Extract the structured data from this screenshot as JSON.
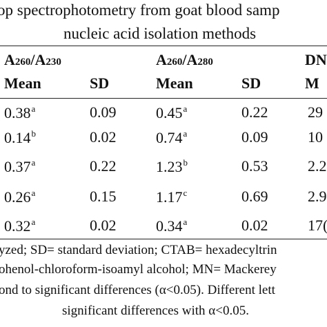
{
  "caption": {
    "line1": "op spectrophotometry from goat blood samp",
    "line2": "nucleic acid isolation methods"
  },
  "headers": {
    "group1": {
      "main": "A",
      "sub1": "260",
      "slash": "/A",
      "sub2": "230"
    },
    "group2": {
      "main": "A",
      "sub1": "260",
      "slash": "/A",
      "sub2": "280"
    },
    "group3": "DN",
    "mean": "Mean",
    "sd": "SD",
    "mean_partial": "M"
  },
  "rows": [
    {
      "m1": "0.38",
      "s1": "a",
      "sd1": "0.09",
      "m2": "0.45",
      "s2": "a",
      "sd2": "0.22",
      "c3": "29"
    },
    {
      "m1": "0.14",
      "s1": "b",
      "sd1": "0.02",
      "m2": "0.74",
      "s2": "a",
      "sd2": "0.09",
      "c3": "10"
    },
    {
      "m1": "0.37",
      "s1": "a",
      "sd1": "0.22",
      "m2": "1.23",
      "s2": "b",
      "sd2": "0.53",
      "c3": "2.2"
    },
    {
      "m1": "0.26",
      "s1": "a",
      "sd1": "0.15",
      "m2": "1.17",
      "s2": "c",
      "sd2": "0.69",
      "c3": "2.9"
    },
    {
      "m1": "0.32",
      "s1": "a",
      "sd1": "0.02",
      "m2": "0.34",
      "s2": "a",
      "sd2": "0.02",
      "c3": "17("
    }
  ],
  "footnote": {
    "line1": "yzed; SD= standard deviation; CTAB= hexadecyltrin",
    "line2": "ohenol-chloroform-isoamyl alcohol; MN= Mackerey",
    "line3": "ond to significant differences (α<0.05). Different lett",
    "line4": "significant differences with α<0.05."
  }
}
